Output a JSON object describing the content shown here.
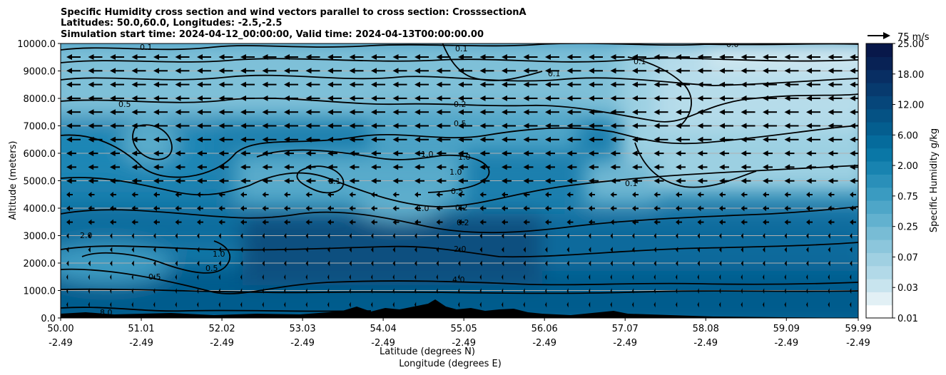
{
  "chart_data": {
    "type": "heatmap",
    "title_lines": [
      "Specific Humidity cross section and wind vectors parallel to cross section: CrosssectionA",
      "Latitudes: 50.0,60.0, Longitudes: -2.5,-2.5",
      "Simulation start time: 2024-04-12_00:00:00, Valid time: 2024-04-13T00:00:00.00"
    ],
    "ylabel": "Altitude (meters)",
    "xlabel_lines": [
      "Latitude (degrees N)",
      "Longitude (degrees E)"
    ],
    "y_ticks": [
      "0.0",
      "1000.0",
      "2000.0",
      "3000.0",
      "4000.0",
      "5000.0",
      "6000.0",
      "7000.0",
      "8000.0",
      "9000.0",
      "10000.0"
    ],
    "ylim": [
      0,
      10000
    ],
    "x_ticks_lat": [
      "50.00",
      "51.01",
      "52.02",
      "53.03",
      "54.04",
      "55.05",
      "56.06",
      "57.07",
      "58.08",
      "59.09",
      "59.99"
    ],
    "x_ticks_lon": [
      "-2.49",
      "-2.49",
      "-2.49",
      "-2.49",
      "-2.49",
      "-2.49",
      "-2.49",
      "-2.49",
      "-2.49",
      "-2.49",
      "-2.49"
    ],
    "xlim": [
      50.0,
      59.99
    ],
    "grid": "horizontal",
    "colorbar": {
      "label": "Specific Humidity g/kg",
      "ticks": [
        "0.01",
        "0.03",
        "0.07",
        "0.25",
        "0.75",
        "2.00",
        "6.00",
        "12.00",
        "18.00",
        "25.00"
      ],
      "colors": [
        "#ffffff",
        "#e2f0f5",
        "#c8e4ee",
        "#b2d9e8",
        "#a0d0e2",
        "#8cc6dc",
        "#78bcd5",
        "#62b1cf",
        "#4ea6c8",
        "#3a9bc1",
        "#2a8fb9",
        "#1883b0",
        "#0a77a6",
        "#056b9c",
        "#045e8f",
        "#055284",
        "#06467a",
        "#073a6e",
        "#082e63",
        "#082255",
        "#08184a"
      ]
    },
    "quiver_key": "75 m/s",
    "contour_labels": [
      "0.1",
      "0.1",
      "0.1",
      "0.1",
      "0.1",
      "0.1",
      "0.0",
      "0.5",
      "0.5",
      "0.5",
      "0.5",
      "0.5",
      "0.2",
      "0.2",
      "0.2",
      "1.0",
      "1.0",
      "1.0",
      "1.0",
      "1.0",
      "2.0",
      "2.0",
      "4.0",
      "8.0"
    ],
    "terrain_color": "#000000"
  }
}
